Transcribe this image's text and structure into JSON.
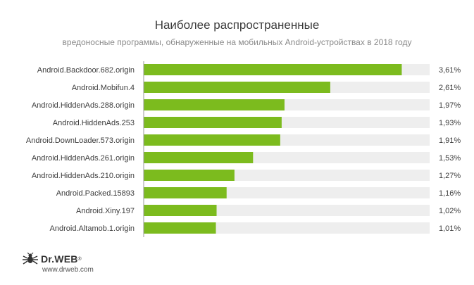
{
  "chart_data": {
    "type": "bar",
    "orientation": "horizontal",
    "title": "Наиболее распространенные",
    "subtitle": "вредоносные программы, обнаруженные на мобильных Android-устройствах в 2018 году",
    "categories": [
      "Android.Backdoor.682.origin",
      "Android.Mobifun.4",
      "Android.HiddenAds.288.origin",
      "Android.HiddenAds.253",
      "Android.DownLoader.573.origin",
      "Android.HiddenAds.261.origin",
      "Android.HiddenAds.210.origin",
      "Android.Packed.15893",
      "Android.Xiny.197",
      "Android.Altamob.1.origin"
    ],
    "values": [
      3.61,
      2.61,
      1.97,
      1.93,
      1.91,
      1.53,
      1.27,
      1.16,
      1.02,
      1.01
    ],
    "value_labels": [
      "3,61%",
      "2,61%",
      "1,97%",
      "1,93%",
      "1,91%",
      "1,53%",
      "1,27%",
      "1,16%",
      "1,02%",
      "1,01%"
    ],
    "xlim": [
      0,
      4
    ],
    "colors": {
      "bar": "#7cbb1e",
      "track": "#eeeeee",
      "axis": "#999999"
    }
  },
  "footer": {
    "logo_text": "Dr.WEB",
    "website": "www.drweb.com"
  }
}
